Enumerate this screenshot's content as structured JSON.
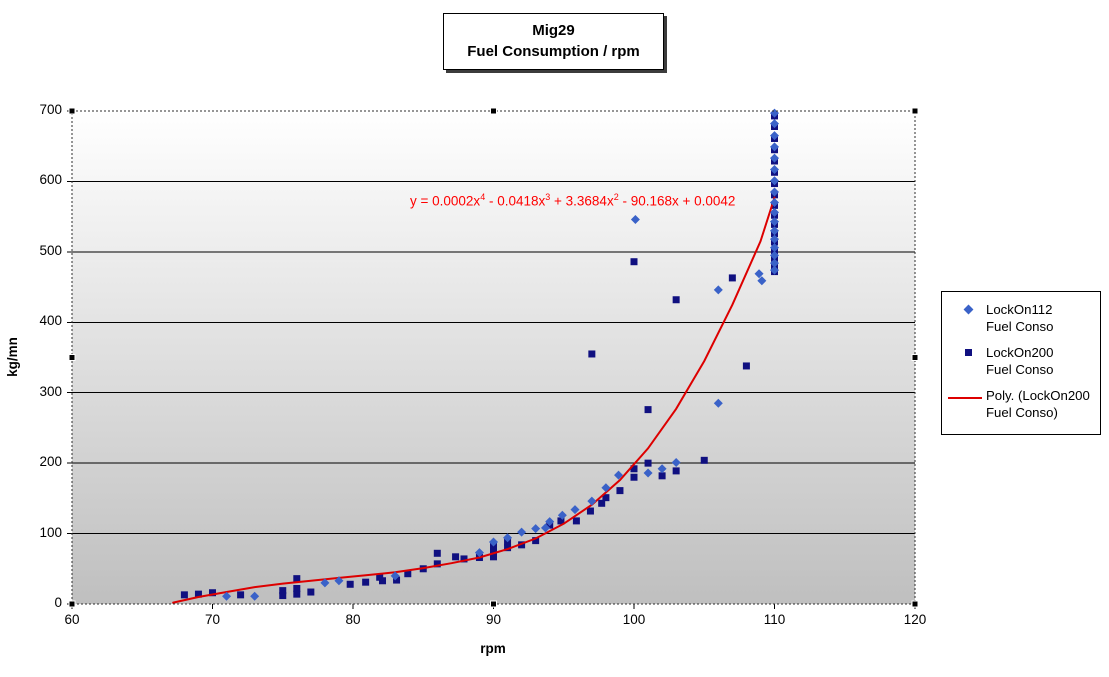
{
  "title": {
    "line1": "Mig29",
    "line2": "Fuel Consumption / rpm"
  },
  "equation": {
    "text_plain": "y = 0.0002x^4 - 0.0418x^3 + 3.3684x^2 - 90.168x + 0.0042",
    "color": "#ff0000",
    "segments": [
      {
        "t": "y = 0.0002x"
      },
      {
        "sup": "4"
      },
      {
        "t": " - 0.0418x"
      },
      {
        "sup": "3"
      },
      {
        "t": " + 3.3684x"
      },
      {
        "sup": "2"
      },
      {
        "t": " - 90.168x + 0.0042"
      }
    ]
  },
  "legend": {
    "position": "right",
    "items": [
      {
        "line1": "LockOn112",
        "line2": "Fuel Conso",
        "marker": "diamond",
        "color": "#3a62c8"
      },
      {
        "line1": "LockOn200",
        "line2": "Fuel Conso",
        "marker": "square",
        "color": "#101080"
      },
      {
        "line1": "Poly. (LockOn200",
        "line2": "Fuel Conso)",
        "marker": "line",
        "color": "#dd0000"
      }
    ]
  },
  "chart_data": {
    "type": "scatter",
    "title": "Mig29 Fuel Consumption / rpm",
    "xlabel": "rpm",
    "ylabel": "kg/mn",
    "xlim": [
      60,
      120
    ],
    "ylim": [
      0,
      700
    ],
    "x_ticks": [
      60,
      70,
      80,
      90,
      100,
      110,
      120
    ],
    "y_ticks": [
      0,
      100,
      200,
      300,
      400,
      500,
      600,
      700
    ],
    "grid": "horizontal-solid-black",
    "plot_background": {
      "gradient_top": "#ffffff",
      "gradient_bottom": "#bfbfbf"
    },
    "legend_position": "right",
    "selection_handles_visible": true,
    "series": [
      {
        "name": "LockOn112 Fuel Conso",
        "marker": "diamond",
        "color": "#3a62c8",
        "points": [
          [
            71,
            11
          ],
          [
            73,
            11
          ],
          [
            78,
            30
          ],
          [
            79,
            33
          ],
          [
            83,
            40
          ],
          [
            89,
            73
          ],
          [
            90,
            88
          ],
          [
            91,
            94
          ],
          [
            92,
            102
          ],
          [
            93,
            107
          ],
          [
            93.7,
            108
          ],
          [
            94,
            117
          ],
          [
            94.9,
            126
          ],
          [
            95.8,
            134
          ],
          [
            97,
            146
          ],
          [
            98,
            165
          ],
          [
            98.9,
            183
          ],
          [
            100.1,
            546
          ],
          [
            101,
            186
          ],
          [
            102,
            192
          ],
          [
            103,
            201
          ],
          [
            106,
            285
          ],
          [
            106,
            446
          ],
          [
            108.9,
            469
          ],
          [
            109.1,
            459
          ],
          [
            110,
            697
          ],
          [
            110,
            682
          ],
          [
            110,
            665
          ],
          [
            110,
            649
          ],
          [
            110,
            633
          ],
          [
            110,
            617
          ],
          [
            110,
            601
          ],
          [
            110,
            585
          ],
          [
            110,
            570
          ],
          [
            110,
            556
          ],
          [
            110,
            543
          ],
          [
            110,
            530
          ],
          [
            110,
            518
          ],
          [
            110,
            506
          ],
          [
            110,
            495
          ],
          [
            110,
            484
          ],
          [
            110,
            474
          ]
        ]
      },
      {
        "name": "LockOn200 Fuel Conso",
        "marker": "square",
        "color": "#101080",
        "points": [
          [
            68,
            13
          ],
          [
            69,
            14
          ],
          [
            70,
            16
          ],
          [
            72,
            13
          ],
          [
            75,
            12
          ],
          [
            75,
            19
          ],
          [
            76,
            14
          ],
          [
            76,
            22
          ],
          [
            76,
            36
          ],
          [
            77,
            17
          ],
          [
            79.8,
            28
          ],
          [
            80.9,
            31
          ],
          [
            81.9,
            38
          ],
          [
            82.1,
            33
          ],
          [
            83.1,
            34
          ],
          [
            83.9,
            43
          ],
          [
            85,
            50
          ],
          [
            86,
            57
          ],
          [
            86,
            72
          ],
          [
            87.3,
            67
          ],
          [
            87.9,
            64
          ],
          [
            89,
            66
          ],
          [
            90,
            67
          ],
          [
            90,
            76
          ],
          [
            90,
            84
          ],
          [
            91,
            80
          ],
          [
            91,
            88
          ],
          [
            92,
            84
          ],
          [
            93,
            90
          ],
          [
            94,
            112
          ],
          [
            94.8,
            118
          ],
          [
            95.9,
            118
          ],
          [
            96.9,
            132
          ],
          [
            97,
            355
          ],
          [
            97.7,
            143
          ],
          [
            98,
            151
          ],
          [
            99,
            161
          ],
          [
            100,
            180
          ],
          [
            100,
            192
          ],
          [
            100,
            486
          ],
          [
            101,
            200
          ],
          [
            101,
            276
          ],
          [
            102,
            182
          ],
          [
            103,
            189
          ],
          [
            103,
            432
          ],
          [
            105,
            204
          ],
          [
            107,
            463
          ],
          [
            108,
            338
          ],
          [
            110,
            693
          ],
          [
            110,
            678
          ],
          [
            110,
            661
          ],
          [
            110,
            645
          ],
          [
            110,
            629
          ],
          [
            110,
            613
          ],
          [
            110,
            597
          ],
          [
            110,
            581
          ],
          [
            110,
            566
          ],
          [
            110,
            552
          ],
          [
            110,
            539
          ],
          [
            110,
            526
          ],
          [
            110,
            514
          ],
          [
            110,
            502
          ],
          [
            110,
            491
          ],
          [
            110,
            480
          ],
          [
            110,
            472
          ]
        ]
      },
      {
        "name": "Poly. (LockOn200 Fuel Conso)",
        "type": "trendline",
        "color": "#dd0000",
        "equation": "y = 0.0002x^4 - 0.0418x^3 + 3.3684x^2 - 90.168x + 0.0042",
        "points": [
          [
            67.2,
            2
          ],
          [
            69,
            10
          ],
          [
            71,
            17
          ],
          [
            73,
            24
          ],
          [
            75,
            29
          ],
          [
            77,
            33
          ],
          [
            79,
            37
          ],
          [
            81,
            41
          ],
          [
            83,
            45
          ],
          [
            85,
            51
          ],
          [
            87,
            58
          ],
          [
            89,
            66
          ],
          [
            91,
            78
          ],
          [
            93,
            93
          ],
          [
            95,
            114
          ],
          [
            97,
            141
          ],
          [
            99,
            176
          ],
          [
            101,
            221
          ],
          [
            103,
            277
          ],
          [
            105,
            345
          ],
          [
            107,
            425
          ],
          [
            109,
            515
          ],
          [
            110,
            577
          ]
        ]
      }
    ]
  }
}
